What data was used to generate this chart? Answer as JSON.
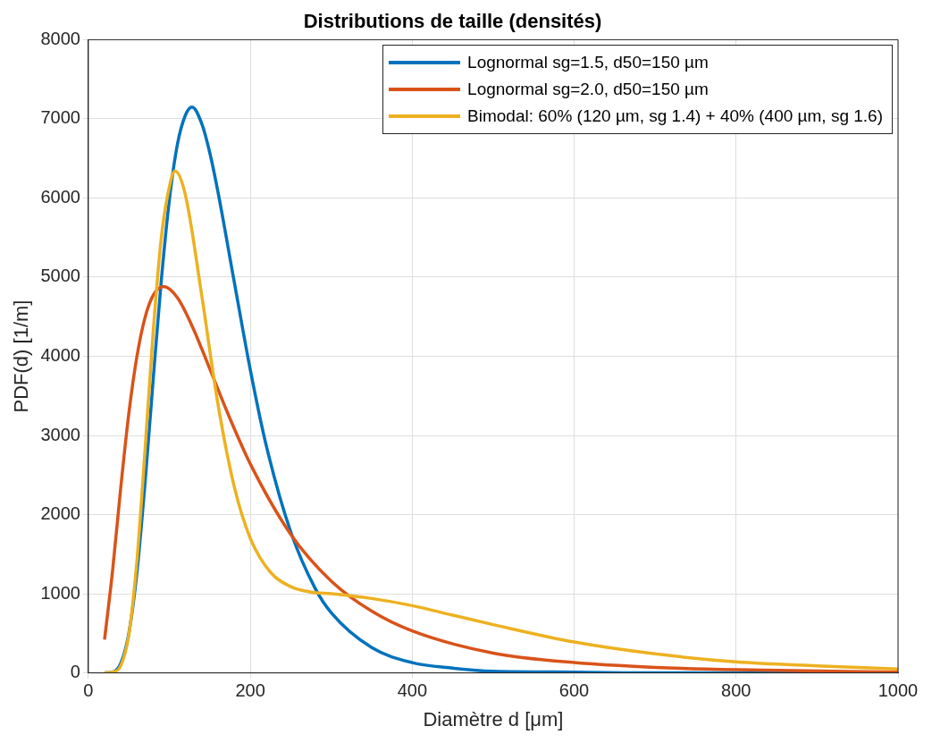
{
  "chart_data": {
    "type": "line",
    "title": "Distributions de taille (densités)",
    "xlabel": "Diamètre d [μm]",
    "ylabel": "PDF(d) [1/m]",
    "xlim": [
      0,
      1000
    ],
    "xticks": [
      0,
      200,
      400,
      600,
      800,
      1000
    ],
    "ylim": [
      0,
      8000
    ],
    "yticks": [
      0,
      1000,
      2000,
      3000,
      4000,
      5000,
      6000,
      7000,
      8000
    ],
    "grid": true,
    "legend": "top right",
    "line_style": "solid",
    "marker": "none",
    "series": [
      {
        "name": "Lognormal sg=1.5, d50=150 µm",
        "color": "#0072bd",
        "x": [
          20,
          30,
          40,
          50,
          60,
          70,
          80,
          90,
          100,
          110,
          120,
          128,
          140,
          150,
          160,
          180,
          200,
          220,
          250,
          280,
          300,
          350,
          400,
          450,
          500,
          600,
          700,
          1000
        ],
        "values": [
          0,
          10,
          120,
          500,
          1270,
          2400,
          3700,
          4950,
          5970,
          6680,
          7050,
          7150,
          6940,
          6570,
          6080,
          4950,
          3830,
          2860,
          1780,
          1070,
          760,
          320,
          130,
          60,
          20,
          10,
          0,
          0
        ]
      },
      {
        "name": "Lognormal sg=2.0, d50=150 µm",
        "color": "#d95319",
        "x": [
          20,
          30,
          40,
          50,
          60,
          70,
          80,
          93,
          110,
          130,
          150,
          175,
          200,
          250,
          300,
          350,
          400,
          500,
          600,
          700,
          800,
          1000
        ],
        "values": [
          420,
          1300,
          2340,
          3280,
          4000,
          4490,
          4770,
          4880,
          4740,
          4340,
          3840,
          3210,
          2640,
          1750,
          1160,
          780,
          530,
          250,
          130,
          70,
          40,
          10
        ]
      },
      {
        "name": "Bimodal: 60% (120 µm, sg 1.4) + 40% (400 µm, sg 1.6)",
        "color": "#edb120",
        "x": [
          20,
          30,
          40,
          50,
          60,
          70,
          80,
          90,
          100,
          107,
          120,
          140,
          160,
          180,
          200,
          225,
          250,
          275,
          300,
          350,
          400,
          450,
          500,
          600,
          700,
          800,
          900,
          1000
        ],
        "values": [
          0,
          10,
          90,
          480,
          1420,
          2820,
          4300,
          5490,
          6140,
          6340,
          6030,
          4770,
          3400,
          2360,
          1700,
          1270,
          1090,
          1020,
          1000,
          940,
          850,
          730,
          610,
          390,
          240,
          140,
          90,
          50
        ]
      }
    ]
  }
}
